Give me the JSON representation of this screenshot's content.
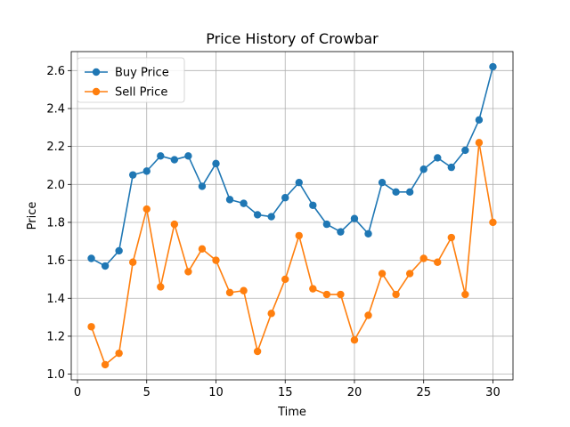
{
  "chart_data": {
    "type": "line",
    "title": "Price History of Crowbar",
    "xlabel": "Time",
    "ylabel": "Price",
    "xlim": [
      -0.45,
      31.45
    ],
    "ylim": [
      0.97,
      2.7
    ],
    "xticks": [
      0,
      5,
      10,
      15,
      20,
      25,
      30
    ],
    "xtick_labels": [
      "0",
      "5",
      "10",
      "15",
      "20",
      "25",
      "30"
    ],
    "yticks": [
      1.0,
      1.2,
      1.4,
      1.6,
      1.8,
      2.0,
      2.2,
      2.4,
      2.6
    ],
    "ytick_labels": [
      "1.0",
      "1.2",
      "1.4",
      "1.6",
      "1.8",
      "2.0",
      "2.2",
      "2.4",
      "2.6"
    ],
    "grid": true,
    "legend_position": "top-left",
    "x": [
      1,
      2,
      3,
      4,
      5,
      6,
      7,
      8,
      9,
      10,
      11,
      12,
      13,
      14,
      15,
      16,
      17,
      18,
      19,
      20,
      21,
      22,
      23,
      24,
      25,
      26,
      27,
      28,
      29,
      30
    ],
    "series": [
      {
        "name": "Buy Price",
        "color": "#1f77b4",
        "values": [
          1.61,
          1.57,
          1.65,
          2.05,
          2.07,
          2.15,
          2.13,
          2.15,
          1.99,
          2.11,
          1.92,
          1.9,
          1.84,
          1.83,
          1.93,
          2.01,
          1.89,
          1.79,
          1.75,
          1.82,
          1.74,
          2.01,
          1.96,
          1.96,
          2.08,
          2.14,
          2.09,
          2.18,
          2.34,
          2.62
        ]
      },
      {
        "name": "Sell Price",
        "color": "#ff7f0e",
        "values": [
          1.25,
          1.05,
          1.11,
          1.59,
          1.87,
          1.46,
          1.79,
          1.54,
          1.66,
          1.6,
          1.43,
          1.44,
          1.12,
          1.32,
          1.5,
          1.73,
          1.45,
          1.42,
          1.42,
          1.18,
          1.31,
          1.53,
          1.42,
          1.53,
          1.61,
          1.59,
          1.72,
          1.42,
          2.22,
          1.8
        ]
      }
    ]
  }
}
